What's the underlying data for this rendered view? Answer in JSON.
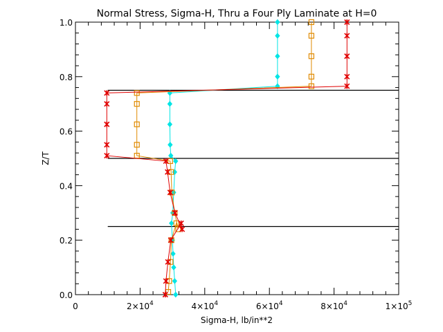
{
  "chart_data": {
    "type": "line",
    "title": "Normal Stress, Sigma-H, Thru a Four Ply Laminate at H=0",
    "xlabel": "Sigma-H,  lb/in**2",
    "ylabel": "Z/T",
    "xlim": [
      0,
      100000
    ],
    "ylim": [
      0,
      1
    ],
    "x_ticks": [
      {
        "value": 0,
        "mant": "0",
        "exp": ""
      },
      {
        "value": 20000,
        "mant": "2×10",
        "exp": "4"
      },
      {
        "value": 40000,
        "mant": "4×10",
        "exp": "4"
      },
      {
        "value": 60000,
        "mant": "6×10",
        "exp": "4"
      },
      {
        "value": 80000,
        "mant": "8×10",
        "exp": "4"
      },
      {
        "value": 100000,
        "mant": "1×10",
        "exp": "5"
      }
    ],
    "y_ticks": [
      {
        "value": 0,
        "label": "0.0"
      },
      {
        "value": 0.2,
        "label": "0.2"
      },
      {
        "value": 0.4,
        "label": "0.4"
      },
      {
        "value": 0.6,
        "label": "0.6"
      },
      {
        "value": 0.8,
        "label": "0.8"
      },
      {
        "value": 1.0,
        "label": "1.0"
      }
    ],
    "ply_boundaries": [
      {
        "z": 0.25,
        "x_from": 10000,
        "x_to": 100000
      },
      {
        "z": 0.5,
        "x_from": 10000,
        "x_to": 100000
      },
      {
        "z": 0.75,
        "x_from": 10000,
        "x_to": 100000
      }
    ],
    "series": [
      {
        "color": "#00e5e5",
        "marker": "diamond",
        "points": [
          [
            31000,
            0.0
          ],
          [
            30700,
            0.05
          ],
          [
            30400,
            0.1
          ],
          [
            30200,
            0.15
          ],
          [
            30000,
            0.2
          ],
          [
            29700,
            0.262
          ],
          [
            30100,
            0.3
          ],
          [
            30400,
            0.375
          ],
          [
            30700,
            0.45
          ],
          [
            31000,
            0.49
          ],
          [
            29500,
            0.51
          ],
          [
            29300,
            0.55
          ],
          [
            29200,
            0.625
          ],
          [
            29200,
            0.7
          ],
          [
            29200,
            0.74
          ],
          [
            62500,
            0.765
          ],
          [
            62500,
            0.8
          ],
          [
            62500,
            0.875
          ],
          [
            62500,
            0.95
          ],
          [
            62500,
            1.0
          ]
        ]
      },
      {
        "color": "#e08a00",
        "marker": "square",
        "points": [
          [
            28700,
            0.01
          ],
          [
            29000,
            0.05
          ],
          [
            29400,
            0.12
          ],
          [
            29700,
            0.2
          ],
          [
            31200,
            0.262
          ],
          [
            31800,
            0.24
          ],
          [
            30700,
            0.3
          ],
          [
            29800,
            0.375
          ],
          [
            29600,
            0.45
          ],
          [
            29300,
            0.49
          ],
          [
            19000,
            0.51
          ],
          [
            19000,
            0.55
          ],
          [
            19000,
            0.625
          ],
          [
            19000,
            0.7
          ],
          [
            19000,
            0.74
          ],
          [
            73000,
            0.765
          ],
          [
            73000,
            0.8
          ],
          [
            73000,
            0.875
          ],
          [
            73000,
            0.95
          ],
          [
            73000,
            1.0
          ]
        ]
      },
      {
        "color": "#e00000",
        "marker": "star",
        "points": [
          [
            27800,
            0.0
          ],
          [
            28000,
            0.05
          ],
          [
            28600,
            0.12
          ],
          [
            29500,
            0.2
          ],
          [
            32700,
            0.262
          ],
          [
            33000,
            0.24
          ],
          [
            30800,
            0.3
          ],
          [
            29300,
            0.375
          ],
          [
            28500,
            0.45
          ],
          [
            28000,
            0.49
          ],
          [
            9700,
            0.51
          ],
          [
            9700,
            0.55
          ],
          [
            9700,
            0.625
          ],
          [
            9700,
            0.7
          ],
          [
            9700,
            0.74
          ],
          [
            84000,
            0.765
          ],
          [
            84000,
            0.8
          ],
          [
            84000,
            0.875
          ],
          [
            84000,
            0.95
          ],
          [
            84000,
            1.0
          ]
        ]
      }
    ]
  }
}
